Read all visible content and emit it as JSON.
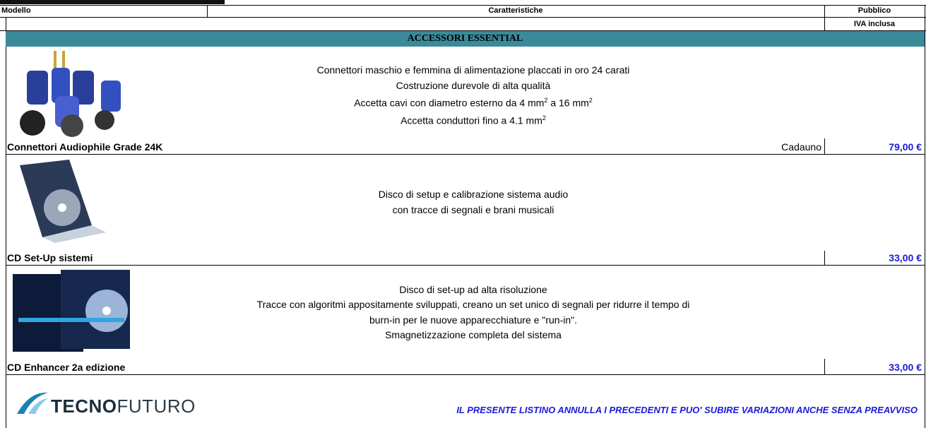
{
  "header": {
    "model": "Modello",
    "features": "Caratteristiche",
    "price_1": "Pubblico",
    "price_2": "IVA inclusa"
  },
  "section": "ACCESSORI ESSENTIAL",
  "products": [
    {
      "name": "Connettori Audiophile Grade 24K",
      "lines": [
        [
          "Connettori maschio e femmina di alimentazione placcati in oro 24 carati"
        ],
        [
          "Costruzione durevole di alta qualità"
        ],
        [
          "Accetta cavi con diametro esterno da 4  mm",
          "2",
          " a 16  mm",
          "2"
        ],
        [
          "Accetta conduttori fino a 4.1  mm",
          "2"
        ]
      ],
      "unit": "Cadauno",
      "price": "79,00 €"
    },
    {
      "name": "CD Set-Up sistemi",
      "lines": [
        [
          "Disco di setup e calibrazione sistema audio"
        ],
        [
          "con tracce di segnali e brani musicali"
        ]
      ],
      "price": "33,00 €"
    },
    {
      "name": "CD Enhancer 2a edizione",
      "lines": [
        [
          "Disco di set-up ad alta risoluzione"
        ],
        [
          "Tracce con algoritmi appositamente sviluppati, creano un set unico di segnali per ridurre il tempo di"
        ],
        [
          "burn-in per le nuove apparecchiature e \"run-in\"."
        ],
        [
          "Smagnetizzazione completa del sistema"
        ]
      ],
      "price": "33,00 €"
    }
  ],
  "logo": {
    "bold": "TECNO",
    "light": "FUTURO"
  },
  "footer": "IL PRESENTE LISTINO ANNULLA I PRECEDENTI E PUO' SUBIRE VARIAZIONI ANCHE SENZA PREAVVISO"
}
